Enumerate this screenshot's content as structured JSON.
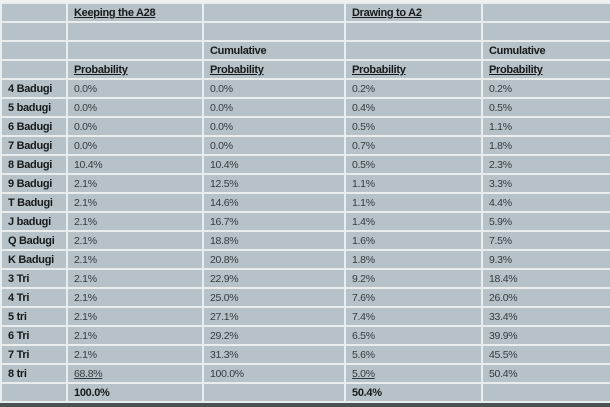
{
  "sections": {
    "keeping": {
      "title": "Keeping the A28"
    },
    "drawing": {
      "title": "Drawing to A2"
    }
  },
  "headers": {
    "cumulative": "Cumulative",
    "probability": "Probability"
  },
  "rows": [
    {
      "label": "4 Badugi",
      "keeping_probability": "0.0%",
      "keeping_cumulative": "0.0%",
      "drawing_probability": "0.2%",
      "drawing_cumulative": "0.2%"
    },
    {
      "label": "5 badugi",
      "keeping_probability": "0.0%",
      "keeping_cumulative": "0.0%",
      "drawing_probability": "0.4%",
      "drawing_cumulative": "0.5%"
    },
    {
      "label": "6 Badugi",
      "keeping_probability": "0.0%",
      "keeping_cumulative": "0.0%",
      "drawing_probability": "0.5%",
      "drawing_cumulative": "1.1%"
    },
    {
      "label": "7 Badugi",
      "keeping_probability": "0.0%",
      "keeping_cumulative": "0.0%",
      "drawing_probability": "0.7%",
      "drawing_cumulative": "1.8%"
    },
    {
      "label": "8 Badugi",
      "keeping_probability": "10.4%",
      "keeping_cumulative": "10.4%",
      "drawing_probability": "0.5%",
      "drawing_cumulative": "2.3%"
    },
    {
      "label": "9 Badugi",
      "keeping_probability": "2.1%",
      "keeping_cumulative": "12.5%",
      "drawing_probability": "1.1%",
      "drawing_cumulative": "3.3%"
    },
    {
      "label": "T Badugi",
      "keeping_probability": "2.1%",
      "keeping_cumulative": "14.6%",
      "drawing_probability": "1.1%",
      "drawing_cumulative": "4.4%"
    },
    {
      "label": "J badugi",
      "keeping_probability": "2.1%",
      "keeping_cumulative": "16.7%",
      "drawing_probability": "1.4%",
      "drawing_cumulative": "5.9%"
    },
    {
      "label": "Q Badugi",
      "keeping_probability": "2.1%",
      "keeping_cumulative": "18.8%",
      "drawing_probability": "1.6%",
      "drawing_cumulative": "7.5%"
    },
    {
      "label": "K Badugi",
      "keeping_probability": "2.1%",
      "keeping_cumulative": "20.8%",
      "drawing_probability": "1.8%",
      "drawing_cumulative": "9.3%"
    },
    {
      "label": "3 Tri",
      "keeping_probability": "2.1%",
      "keeping_cumulative": "22.9%",
      "drawing_probability": "9.2%",
      "drawing_cumulative": "18.4%"
    },
    {
      "label": "4 Tri",
      "keeping_probability": "2.1%",
      "keeping_cumulative": "25.0%",
      "drawing_probability": "7.6%",
      "drawing_cumulative": "26.0%"
    },
    {
      "label": "5 tri",
      "keeping_probability": "2.1%",
      "keeping_cumulative": "27.1%",
      "drawing_probability": "7.4%",
      "drawing_cumulative": "33.4%"
    },
    {
      "label": "6 Tri",
      "keeping_probability": "2.1%",
      "keeping_cumulative": "29.2%",
      "drawing_probability": "6.5%",
      "drawing_cumulative": "39.9%"
    },
    {
      "label": "7 Tri",
      "keeping_probability": "2.1%",
      "keeping_cumulative": "31.3%",
      "drawing_probability": "5.6%",
      "drawing_cumulative": "45.5%"
    },
    {
      "label": "8 tri",
      "keeping_probability": "68.8%",
      "keeping_cumulative": "100.0%",
      "drawing_probability": "5.0%",
      "drawing_cumulative": "50.4%",
      "underlined_probabilities": true
    }
  ],
  "totals": {
    "keeping_probability": "100.0%",
    "drawing_probability": "50.4%"
  },
  "colors": {
    "cell_background": "#b6c2c8",
    "grid_line": "#e9eded",
    "label_text": "#17191a",
    "value_text": "#333a3d",
    "bottom_border": "#4a5153"
  },
  "chart_data": {
    "type": "table",
    "title": "Badugi draw outcome probabilities: Keeping the A28 vs Drawing to A2",
    "unit": "%",
    "row_labels": [
      "4 Badugi",
      "5 badugi",
      "6 Badugi",
      "7 Badugi",
      "8 Badugi",
      "9 Badugi",
      "T Badugi",
      "J badugi",
      "Q Badugi",
      "K Badugi",
      "3 Tri",
      "4 Tri",
      "5 tri",
      "6 Tri",
      "7 Tri",
      "8 tri"
    ],
    "series": [
      {
        "name": "Keeping the A28 - Probability",
        "values": [
          0.0,
          0.0,
          0.0,
          0.0,
          10.4,
          2.1,
          2.1,
          2.1,
          2.1,
          2.1,
          2.1,
          2.1,
          2.1,
          2.1,
          2.1,
          68.8
        ],
        "total": 100.0
      },
      {
        "name": "Keeping the A28 - Cumulative Probability",
        "values": [
          0.0,
          0.0,
          0.0,
          0.0,
          10.4,
          12.5,
          14.6,
          16.7,
          18.8,
          20.8,
          22.9,
          25.0,
          27.1,
          29.2,
          31.3,
          100.0
        ]
      },
      {
        "name": "Drawing to A2 - Probability",
        "values": [
          0.2,
          0.4,
          0.5,
          0.7,
          0.5,
          1.1,
          1.1,
          1.4,
          1.6,
          1.8,
          9.2,
          7.6,
          7.4,
          6.5,
          5.6,
          5.0
        ],
        "total": 50.4
      },
      {
        "name": "Drawing to A2 - Cumulative Probability",
        "values": [
          0.2,
          0.5,
          1.1,
          1.8,
          2.3,
          3.3,
          4.4,
          5.9,
          7.5,
          9.3,
          18.4,
          26.0,
          33.4,
          39.9,
          45.5,
          50.4
        ]
      }
    ]
  }
}
